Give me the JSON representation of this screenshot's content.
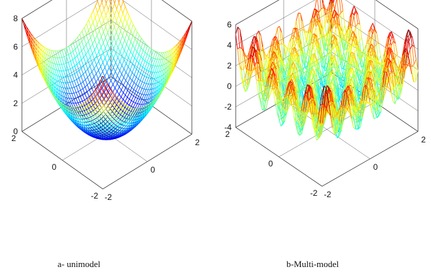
{
  "chart_data": [
    {
      "type": "surface3d",
      "title": "",
      "function": "x^2 + y^2 (unimodal, bowl-shaped)",
      "x_ticks": [
        "-2",
        "0",
        "2"
      ],
      "y_ticks": [
        "-2",
        "0",
        "2"
      ],
      "z_ticks": [
        "0",
        "2",
        "4",
        "6",
        "8"
      ],
      "xlim": [
        -2,
        2
      ],
      "ylim": [
        -2,
        2
      ],
      "zlim": [
        0,
        8
      ],
      "z_min": 0,
      "z_max": 8,
      "colormap": "jet",
      "grid": true,
      "caption": "a- unimodel"
    },
    {
      "type": "surface3d",
      "title": "",
      "function": "multimodal oscillating surface",
      "x_ticks": [
        "-2",
        "0",
        "2"
      ],
      "y_ticks": [
        "-2",
        "0",
        "2"
      ],
      "z_ticks": [
        "-4",
        "-2",
        "0",
        "2",
        "4",
        "6"
      ],
      "xlim": [
        -2,
        2
      ],
      "ylim": [
        -2,
        2
      ],
      "zlim": [
        -4,
        6
      ],
      "z_min": -5,
      "z_max": 5,
      "colormap": "jet",
      "grid": true,
      "caption": "b-Multi-model"
    }
  ],
  "captions": {
    "a": "a- unimodel",
    "b": "b-Multi-model"
  }
}
